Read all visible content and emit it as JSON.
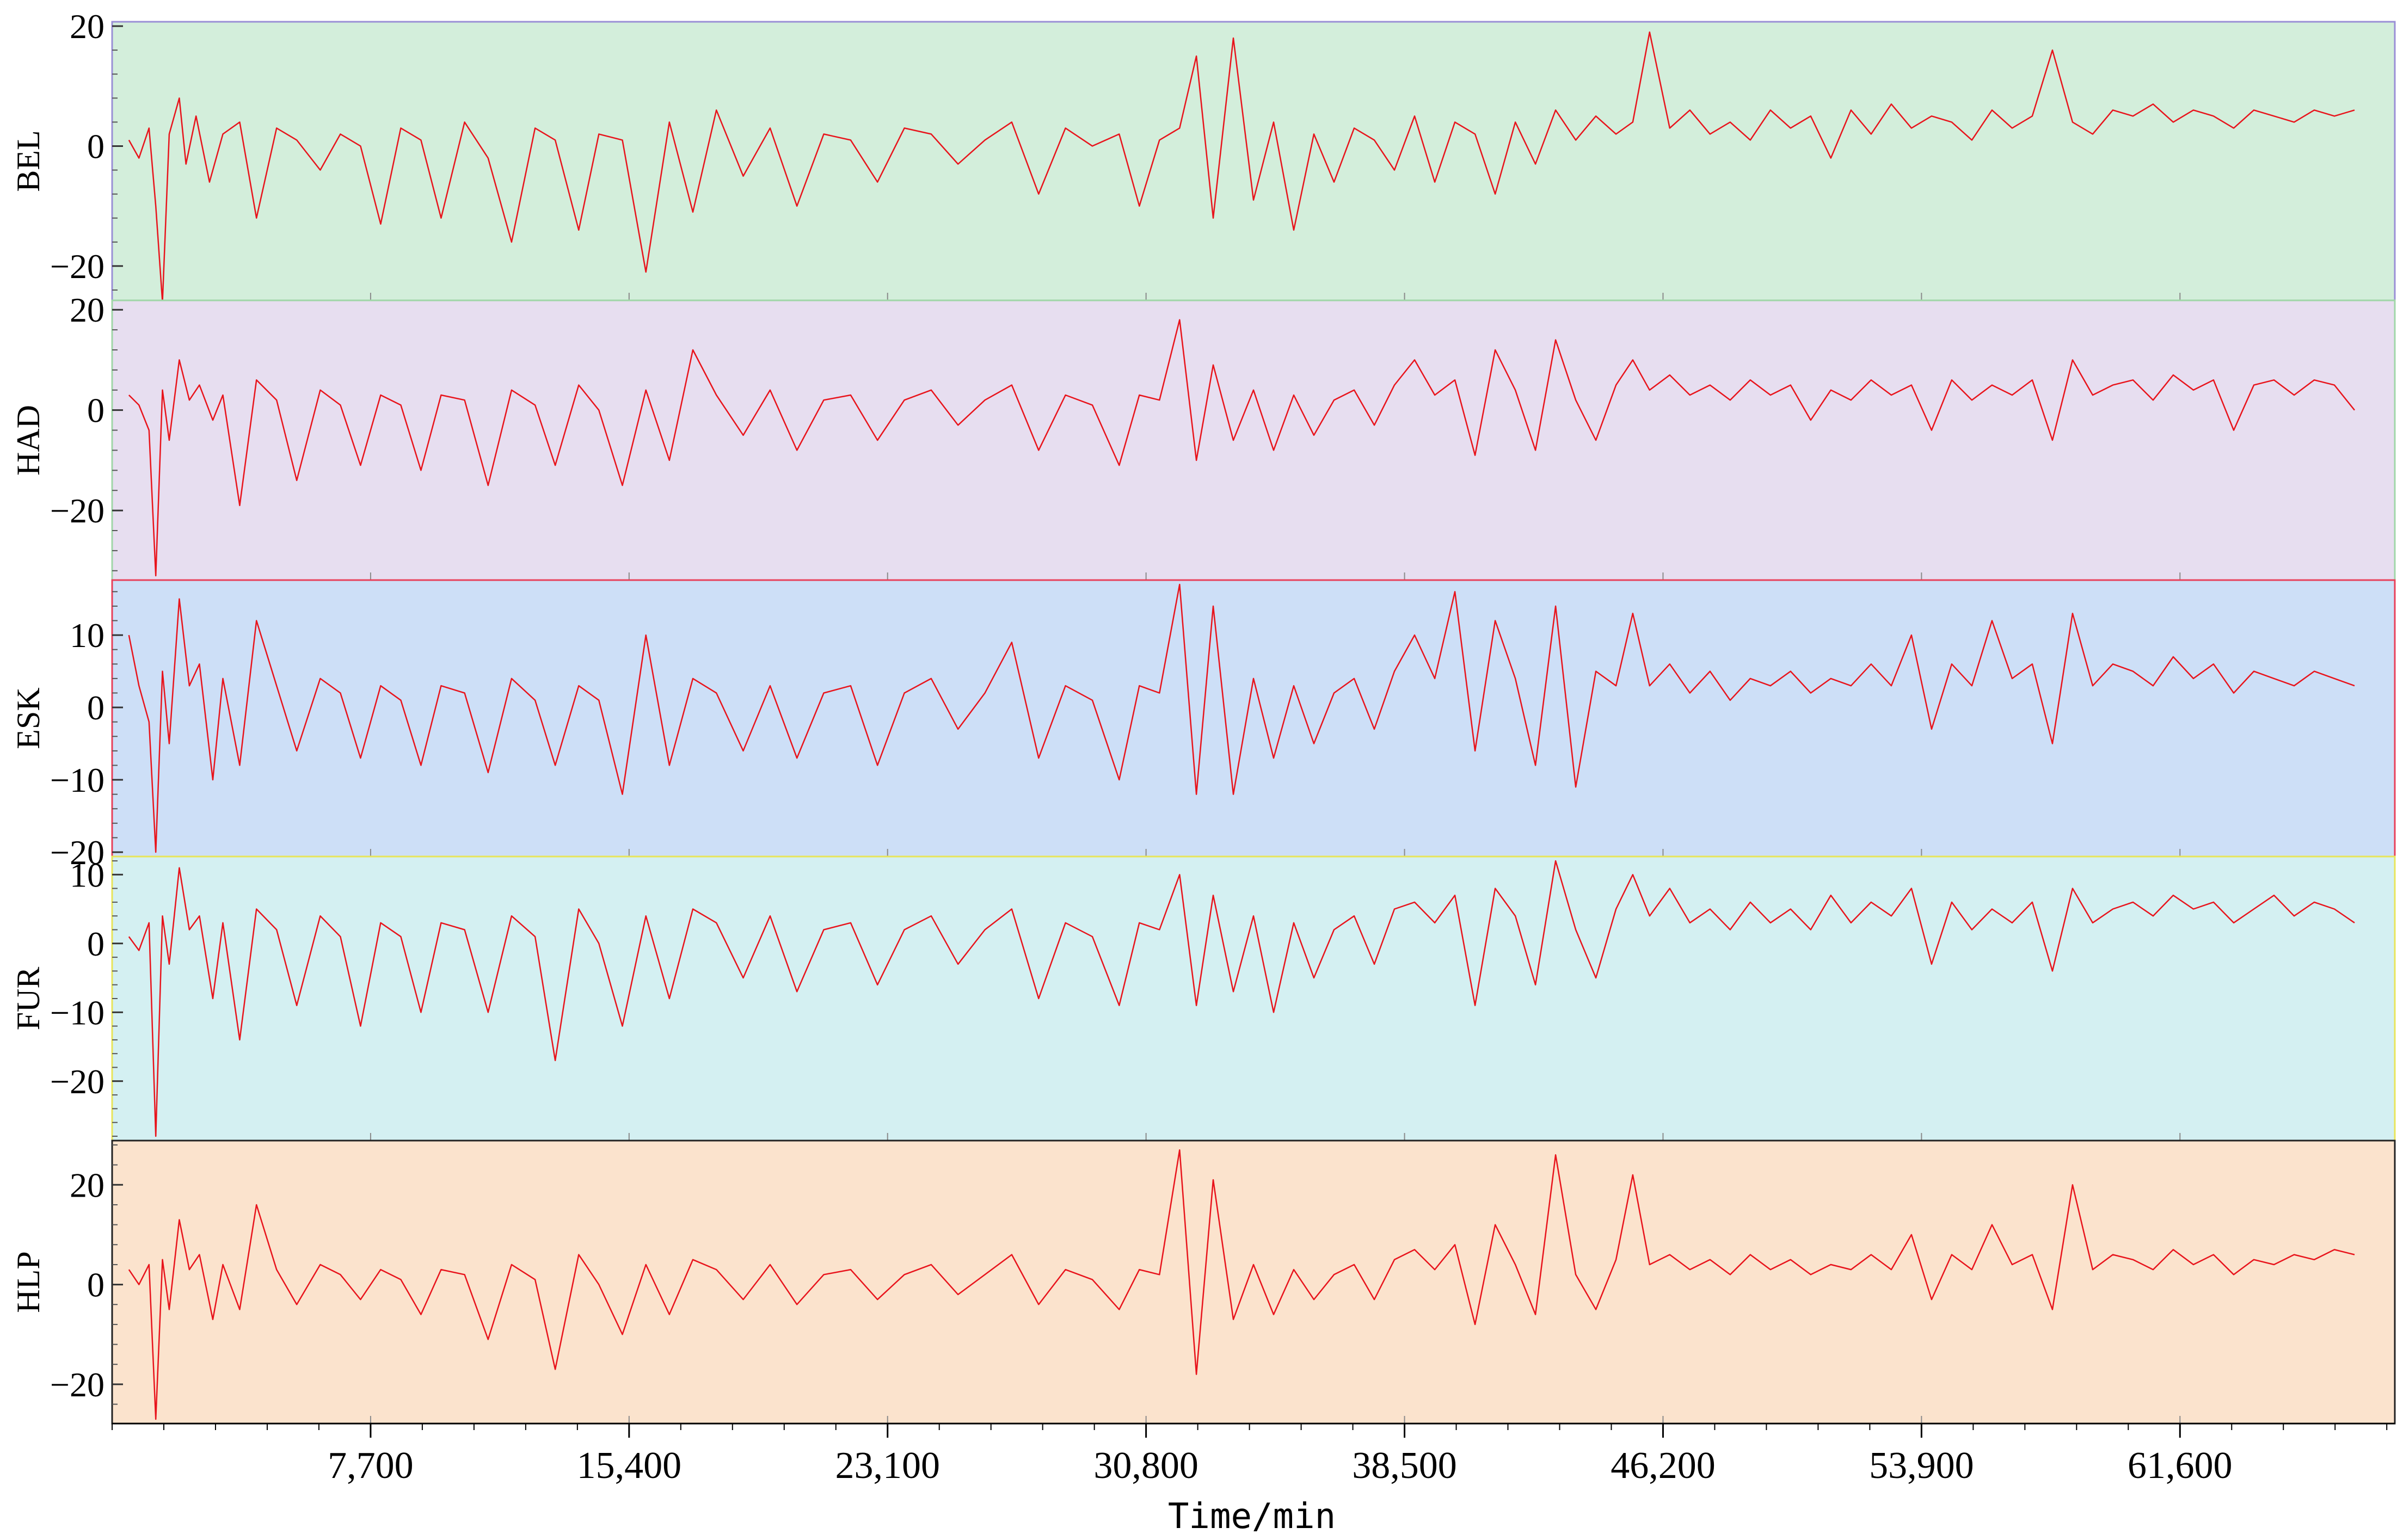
{
  "chart_data": {
    "type": "line",
    "xlabel": "Time/min",
    "xlim": [
      0,
      68000
    ],
    "x_ticks": [
      7700,
      15400,
      23100,
      30800,
      38500,
      46200,
      53900,
      61600
    ],
    "x_tick_labels": [
      "7,700",
      "15,400",
      "23,100",
      "30,800",
      "38,500",
      "46,200",
      "53,900",
      "61,600"
    ],
    "line_color": "#e8141c",
    "series": [
      {
        "name": "BEL",
        "background": "#d3eedb",
        "border": "#9a8fd6",
        "ylim": [
          -25,
          20
        ],
        "y_ticks": [
          -20,
          0,
          20
        ],
        "y_tick_labels": [
          "−20",
          "0",
          "20"
        ],
        "x": [
          500,
          800,
          1100,
          1300,
          1500,
          1700,
          2000,
          2200,
          2500,
          2900,
          3300,
          3800,
          4300,
          4900,
          5500,
          6200,
          6800,
          7400,
          8000,
          8600,
          9200,
          9800,
          10500,
          11200,
          11900,
          12600,
          13200,
          13900,
          14500,
          15200,
          15900,
          16600,
          17300,
          18000,
          18800,
          19600,
          20400,
          21200,
          22000,
          22800,
          23600,
          24400,
          25200,
          26000,
          26800,
          27600,
          28400,
          29200,
          30000,
          30600,
          31200,
          31800,
          32300,
          32800,
          33400,
          34000,
          34600,
          35200,
          35800,
          36400,
          37000,
          37600,
          38200,
          38800,
          39400,
          40000,
          40600,
          41200,
          41800,
          42400,
          43000,
          43600,
          44200,
          44800,
          45300,
          45800,
          46400,
          47000,
          47600,
          48200,
          48800,
          49400,
          50000,
          50600,
          51200,
          51800,
          52400,
          53000,
          53600,
          54200,
          54800,
          55400,
          56000,
          56600,
          57200,
          57800,
          58400,
          59000,
          59600,
          60200,
          60800,
          61400,
          62000,
          62600,
          63200,
          63800,
          64400,
          65000,
          65600,
          66200,
          66800
        ],
        "values": [
          1,
          -2,
          3,
          -10,
          -26,
          2,
          8,
          -3,
          5,
          -6,
          2,
          4,
          -12,
          3,
          1,
          -4,
          2,
          0,
          -13,
          3,
          1,
          -12,
          4,
          -2,
          -16,
          3,
          1,
          -14,
          2,
          1,
          -21,
          4,
          -11,
          6,
          -5,
          3,
          -10,
          2,
          1,
          -6,
          3,
          2,
          -3,
          1,
          4,
          -8,
          3,
          0,
          2,
          -10,
          1,
          3,
          15,
          -12,
          18,
          -9,
          4,
          -14,
          2,
          -6,
          3,
          1,
          -4,
          5,
          -6,
          4,
          2,
          -8,
          4,
          -3,
          6,
          1,
          5,
          2,
          4,
          19,
          3,
          6,
          2,
          4,
          1,
          6,
          3,
          5,
          -2,
          6,
          2,
          7,
          3,
          5,
          4,
          1,
          6,
          3,
          5,
          16,
          4,
          2,
          6,
          5,
          7,
          4,
          6,
          5,
          3,
          6,
          5,
          4,
          6,
          5,
          6
        ]
      },
      {
        "name": "HAD",
        "background": "#e7def0",
        "border": "#a0d6a8",
        "ylim": [
          -33,
          21
        ],
        "y_ticks": [
          -20,
          0,
          20
        ],
        "y_tick_labels": [
          "−20",
          "0",
          "20"
        ],
        "x": [
          500,
          800,
          1100,
          1300,
          1500,
          1700,
          2000,
          2300,
          2600,
          3000,
          3300,
          3800,
          4300,
          4900,
          5500,
          6200,
          6800,
          7400,
          8000,
          8600,
          9200,
          9800,
          10500,
          11200,
          11900,
          12600,
          13200,
          13900,
          14500,
          15200,
          15900,
          16600,
          17300,
          18000,
          18800,
          19600,
          20400,
          21200,
          22000,
          22800,
          23600,
          24400,
          25200,
          26000,
          26800,
          27600,
          28400,
          29200,
          30000,
          30600,
          31200,
          31800,
          32300,
          32800,
          33400,
          34000,
          34600,
          35200,
          35800,
          36400,
          37000,
          37600,
          38200,
          38800,
          39400,
          40000,
          40600,
          41200,
          41800,
          42400,
          43000,
          43600,
          44200,
          44800,
          45300,
          45800,
          46400,
          47000,
          47600,
          48200,
          48800,
          49400,
          50000,
          50600,
          51200,
          51800,
          52400,
          53000,
          53600,
          54200,
          54800,
          55400,
          56000,
          56600,
          57200,
          57800,
          58400,
          59000,
          59600,
          60200,
          60800,
          61400,
          62000,
          62600,
          63200,
          63800,
          64400,
          65000,
          65600,
          66200,
          66800
        ],
        "values": [
          3,
          1,
          -4,
          -33,
          4,
          -6,
          10,
          2,
          5,
          -2,
          3,
          -19,
          6,
          2,
          -14,
          4,
          1,
          -11,
          3,
          1,
          -12,
          3,
          2,
          -15,
          4,
          1,
          -11,
          5,
          0,
          -15,
          4,
          -10,
          12,
          3,
          -5,
          4,
          -8,
          2,
          3,
          -6,
          2,
          4,
          -3,
          2,
          5,
          -8,
          3,
          1,
          -11,
          3,
          2,
          18,
          -10,
          9,
          -6,
          4,
          -8,
          3,
          -5,
          2,
          4,
          -3,
          5,
          10,
          3,
          6,
          -9,
          12,
          4,
          -8,
          14,
          2,
          -6,
          5,
          10,
          4,
          7,
          3,
          5,
          2,
          6,
          3,
          5,
          -2,
          4,
          2,
          6,
          3,
          5,
          -4,
          6,
          2,
          5,
          3,
          6,
          -6,
          10,
          3,
          5,
          6,
          2,
          7,
          4,
          6,
          -4,
          5,
          6,
          3,
          6,
          5,
          0
        ]
      },
      {
        "name": "ESK",
        "background": "#cddff7",
        "border": "#e8405a",
        "ylim": [
          -20,
          17
        ],
        "y_ticks": [
          -20,
          -10,
          0,
          10
        ],
        "y_tick_labels": [
          "−20",
          "−10",
          "0",
          "10"
        ],
        "x": [
          500,
          800,
          1100,
          1300,
          1500,
          1700,
          2000,
          2300,
          2600,
          3000,
          3300,
          3800,
          4300,
          4900,
          5500,
          6200,
          6800,
          7400,
          8000,
          8600,
          9200,
          9800,
          10500,
          11200,
          11900,
          12600,
          13200,
          13900,
          14500,
          15200,
          15900,
          16600,
          17300,
          18000,
          18800,
          19600,
          20400,
          21200,
          22000,
          22800,
          23600,
          24400,
          25200,
          26000,
          26800,
          27600,
          28400,
          29200,
          30000,
          30600,
          31200,
          31800,
          32300,
          32800,
          33400,
          34000,
          34600,
          35200,
          35800,
          36400,
          37000,
          37600,
          38200,
          38800,
          39400,
          40000,
          40600,
          41200,
          41800,
          42400,
          43000,
          43600,
          44200,
          44800,
          45300,
          45800,
          46400,
          47000,
          47600,
          48200,
          48800,
          49400,
          50000,
          50600,
          51200,
          51800,
          52400,
          53000,
          53600,
          54200,
          54800,
          55400,
          56000,
          56600,
          57200,
          57800,
          58400,
          59000,
          59600,
          60200,
          60800,
          61400,
          62000,
          62600,
          63200,
          63800,
          64400,
          65000,
          65600,
          66200,
          66800
        ],
        "values": [
          10,
          3,
          -2,
          -20,
          5,
          -5,
          15,
          3,
          6,
          -10,
          4,
          -8,
          12,
          3,
          -6,
          4,
          2,
          -7,
          3,
          1,
          -8,
          3,
          2,
          -9,
          4,
          1,
          -8,
          3,
          1,
          -12,
          10,
          -8,
          4,
          2,
          -6,
          3,
          -7,
          2,
          3,
          -8,
          2,
          4,
          -3,
          2,
          9,
          -7,
          3,
          1,
          -10,
          3,
          2,
          17,
          -12,
          14,
          -12,
          4,
          -7,
          3,
          -5,
          2,
          4,
          -3,
          5,
          10,
          4,
          16,
          -6,
          12,
          4,
          -8,
          14,
          -11,
          5,
          3,
          13,
          3,
          6,
          2,
          5,
          1,
          4,
          3,
          5,
          2,
          4,
          3,
          6,
          3,
          10,
          -3,
          6,
          3,
          12,
          4,
          6,
          -5,
          13,
          3,
          6,
          5,
          3,
          7,
          4,
          6,
          2,
          5,
          4,
          3,
          5,
          4,
          3
        ]
      },
      {
        "name": "FUR",
        "background": "#d4f0f2",
        "border": "#e8e45a",
        "ylim": [
          -28,
          12
        ],
        "y_ticks": [
          -20,
          -10,
          0,
          10
        ],
        "y_tick_labels": [
          "−20",
          "−10",
          "0",
          "10"
        ],
        "x": [
          500,
          800,
          1100,
          1300,
          1500,
          1700,
          2000,
          2300,
          2600,
          3000,
          3300,
          3800,
          4300,
          4900,
          5500,
          6200,
          6800,
          7400,
          8000,
          8600,
          9200,
          9800,
          10500,
          11200,
          11900,
          12600,
          13200,
          13900,
          14500,
          15200,
          15900,
          16600,
          17300,
          18000,
          18800,
          19600,
          20400,
          21200,
          22000,
          22800,
          23600,
          24400,
          25200,
          26000,
          26800,
          27600,
          28400,
          29200,
          30000,
          30600,
          31200,
          31800,
          32300,
          32800,
          33400,
          34000,
          34600,
          35200,
          35800,
          36400,
          37000,
          37600,
          38200,
          38800,
          39400,
          40000,
          40600,
          41200,
          41800,
          42400,
          43000,
          43600,
          44200,
          44800,
          45300,
          45800,
          46400,
          47000,
          47600,
          48200,
          48800,
          49400,
          50000,
          50600,
          51200,
          51800,
          52400,
          53000,
          53600,
          54200,
          54800,
          55400,
          56000,
          56600,
          57200,
          57800,
          58400,
          59000,
          59600,
          60200,
          60800,
          61400,
          62000,
          62600,
          63200,
          63800,
          64400,
          65000,
          65600,
          66200,
          66800
        ],
        "values": [
          1,
          -1,
          3,
          -28,
          4,
          -3,
          11,
          2,
          4,
          -8,
          3,
          -14,
          5,
          2,
          -9,
          4,
          1,
          -12,
          3,
          1,
          -10,
          3,
          2,
          -10,
          4,
          1,
          -17,
          5,
          0,
          -12,
          4,
          -8,
          5,
          3,
          -5,
          4,
          -7,
          2,
          3,
          -6,
          2,
          4,
          -3,
          2,
          5,
          -8,
          3,
          1,
          -9,
          3,
          2,
          10,
          -9,
          7,
          -7,
          4,
          -10,
          3,
          -5,
          2,
          4,
          -3,
          5,
          6,
          3,
          7,
          -9,
          8,
          4,
          -6,
          12,
          2,
          -5,
          5,
          10,
          4,
          8,
          3,
          5,
          2,
          6,
          3,
          5,
          2,
          7,
          3,
          6,
          4,
          8,
          -3,
          6,
          2,
          5,
          3,
          6,
          -4,
          8,
          3,
          5,
          6,
          4,
          7,
          5,
          6,
          3,
          5,
          7,
          4,
          6,
          5,
          3
        ]
      },
      {
        "name": "HLP",
        "background": "#fbe3cd",
        "border": "#222222",
        "ylim": [
          -27,
          28
        ],
        "y_ticks": [
          -20,
          0,
          20
        ],
        "y_tick_labels": [
          "−20",
          "0",
          "20"
        ],
        "x": [
          500,
          800,
          1100,
          1300,
          1500,
          1700,
          2000,
          2300,
          2600,
          3000,
          3300,
          3800,
          4300,
          4900,
          5500,
          6200,
          6800,
          7400,
          8000,
          8600,
          9200,
          9800,
          10500,
          11200,
          11900,
          12600,
          13200,
          13900,
          14500,
          15200,
          15900,
          16600,
          17300,
          18000,
          18800,
          19600,
          20400,
          21200,
          22000,
          22800,
          23600,
          24400,
          25200,
          26000,
          26800,
          27600,
          28400,
          29200,
          30000,
          30600,
          31200,
          31800,
          32300,
          32800,
          33400,
          34000,
          34600,
          35200,
          35800,
          36400,
          37000,
          37600,
          38200,
          38800,
          39400,
          40000,
          40600,
          41200,
          41800,
          42400,
          43000,
          43600,
          44200,
          44800,
          45300,
          45800,
          46400,
          47000,
          47600,
          48200,
          48800,
          49400,
          50000,
          50600,
          51200,
          51800,
          52400,
          53000,
          53600,
          54200,
          54800,
          55400,
          56000,
          56600,
          57200,
          57800,
          58400,
          59000,
          59600,
          60200,
          60800,
          61400,
          62000,
          62600,
          63200,
          63800,
          64400,
          65000,
          65600,
          66200,
          66800
        ],
        "values": [
          3,
          0,
          4,
          -27,
          5,
          -5,
          13,
          3,
          6,
          -7,
          4,
          -5,
          16,
          3,
          -4,
          4,
          2,
          -3,
          3,
          1,
          -6,
          3,
          2,
          -11,
          4,
          1,
          -17,
          6,
          0,
          -10,
          4,
          -6,
          5,
          3,
          -3,
          4,
          -4,
          2,
          3,
          -3,
          2,
          4,
          -2,
          2,
          6,
          -4,
          3,
          1,
          -5,
          3,
          2,
          27,
          -18,
          21,
          -7,
          4,
          -6,
          3,
          -3,
          2,
          4,
          -3,
          5,
          7,
          3,
          8,
          -8,
          12,
          4,
          -6,
          26,
          2,
          -5,
          5,
          22,
          4,
          6,
          3,
          5,
          2,
          6,
          3,
          5,
          2,
          4,
          3,
          6,
          3,
          10,
          -3,
          6,
          3,
          12,
          4,
          6,
          -5,
          20,
          3,
          6,
          5,
          3,
          7,
          4,
          6,
          2,
          5,
          4,
          6,
          5,
          7,
          6
        ]
      }
    ]
  }
}
